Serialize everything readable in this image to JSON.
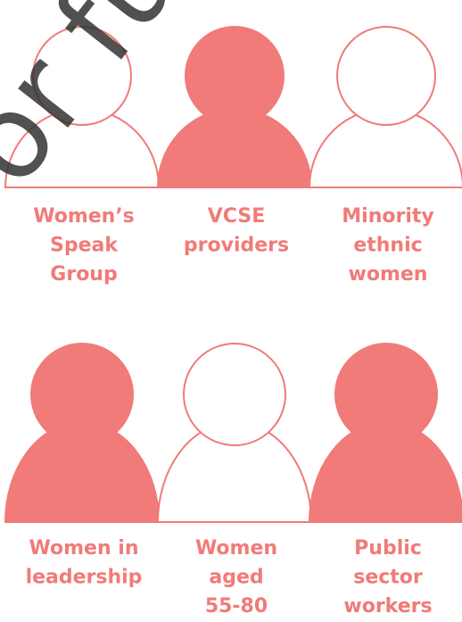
{
  "watermark": "or fu",
  "color": "#f07b78",
  "groups": [
    {
      "label": [
        "Women’s",
        "Speak",
        "Group"
      ],
      "filled": false
    },
    {
      "label": [
        "VCSE",
        "providers"
      ],
      "filled": true
    },
    {
      "label": [
        "Minority",
        "ethnic",
        "women"
      ],
      "filled": false
    },
    {
      "label": [
        "Women in",
        "leadership"
      ],
      "filled": true
    },
    {
      "label": [
        "Women",
        "aged",
        "55-80"
      ],
      "filled": false
    },
    {
      "label": [
        "Public",
        "sector",
        "workers"
      ],
      "filled": true
    }
  ]
}
